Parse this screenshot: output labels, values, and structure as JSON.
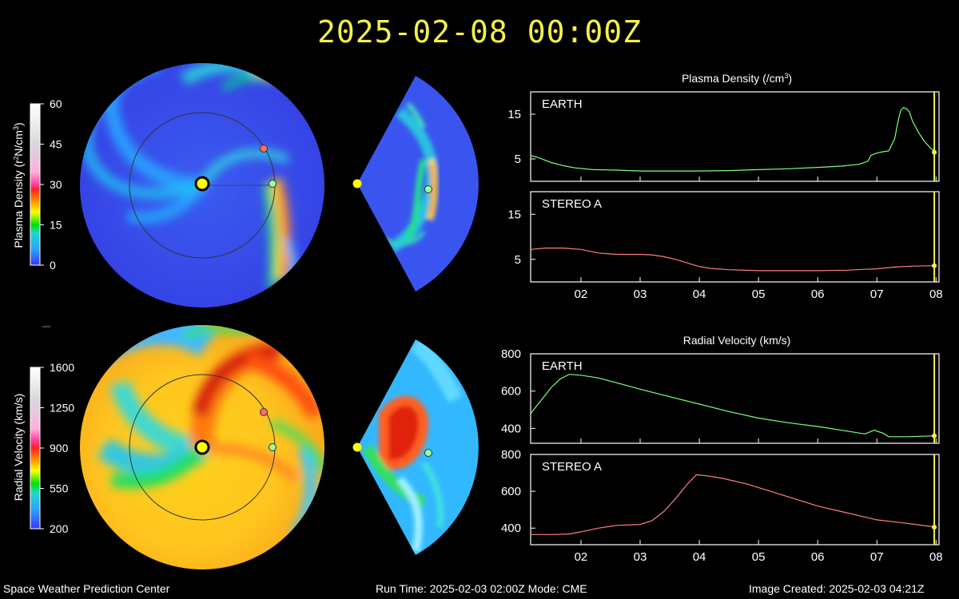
{
  "header": {
    "timestamp": "2025-02-08  00:00Z"
  },
  "footer": {
    "center": "Space Weather Prediction Center",
    "run_time": "Run Time: 2025-02-03 02:00Z  Mode: CME",
    "created": "Image Created: 2025-02-03 04:21Z"
  },
  "colorbars": {
    "density": {
      "label_pre": "Plasma Density (r",
      "label_sup1": "2",
      "label_mid": "N/cm",
      "label_sup2": "3",
      "label_post": ")",
      "ticks": [
        "60",
        "45",
        "30",
        "15",
        "0"
      ]
    },
    "velocity": {
      "label": "Radial Velocity (km/s)",
      "ticks": [
        "1600",
        "1250",
        "900",
        "550",
        "200"
      ]
    }
  },
  "colors": {
    "earth": "#7dff7d",
    "stereo_a": "#ff7f7f",
    "sun": "#ffff00",
    "marker": "#f5f04a",
    "title": "#f5f04a"
  },
  "chart_data": [
    {
      "type": "line",
      "panel_title_pre": "Plasma Density (/cm",
      "panel_title_sup": "3",
      "panel_title_post": ")",
      "ylabel": "",
      "xlim": [
        1.15,
        8.05
      ],
      "xticks": [
        "02",
        "03",
        "04",
        "05",
        "06",
        "07",
        "08"
      ],
      "subplots": [
        {
          "label": "EARTH",
          "ylim": [
            0,
            20
          ],
          "yticks": [
            5,
            15
          ],
          "color": "#7dff7d",
          "x": [
            1.15,
            1.3,
            1.5,
            1.7,
            1.9,
            2.2,
            2.6,
            3.0,
            3.5,
            4.0,
            4.5,
            5.0,
            5.5,
            6.0,
            6.4,
            6.7,
            6.85,
            6.9,
            7.0,
            7.1,
            7.2,
            7.3,
            7.35,
            7.4,
            7.45,
            7.5,
            7.55,
            7.6,
            7.7,
            7.8,
            7.9,
            8.0
          ],
          "y": [
            5.8,
            5.2,
            4.2,
            3.5,
            3.0,
            2.6,
            2.5,
            2.3,
            2.3,
            2.3,
            2.4,
            2.6,
            2.8,
            3.1,
            3.4,
            3.8,
            4.5,
            5.8,
            6.3,
            6.6,
            6.8,
            9.5,
            13.0,
            15.8,
            16.5,
            16.2,
            15.5,
            13.5,
            11.0,
            9.0,
            7.5,
            6.5
          ]
        },
        {
          "label": "STEREO A",
          "ylim": [
            0,
            20
          ],
          "yticks": [
            5,
            15
          ],
          "color": "#ff7f7f",
          "x": [
            1.15,
            1.4,
            1.7,
            2.0,
            2.3,
            2.6,
            3.0,
            3.2,
            3.4,
            3.6,
            3.8,
            4.0,
            4.2,
            4.5,
            5.0,
            5.5,
            6.0,
            6.5,
            6.8,
            7.0,
            7.3,
            7.6,
            8.0
          ],
          "y": [
            7.2,
            7.5,
            7.5,
            7.2,
            6.4,
            6.1,
            6.1,
            6.0,
            5.6,
            5.0,
            4.2,
            3.4,
            3.0,
            2.7,
            2.5,
            2.5,
            2.5,
            2.6,
            2.8,
            2.9,
            3.3,
            3.5,
            3.6
          ]
        }
      ]
    },
    {
      "type": "line",
      "panel_title": "Radial Velocity (km/s)",
      "ylabel": "",
      "xlim": [
        1.15,
        8.05
      ],
      "xticks": [
        "02",
        "03",
        "04",
        "05",
        "06",
        "07",
        "08"
      ],
      "subplots": [
        {
          "label": "EARTH",
          "ylim": [
            320,
            800
          ],
          "yticks": [
            400,
            600,
            800
          ],
          "color": "#7dff7d",
          "x": [
            1.15,
            1.3,
            1.5,
            1.65,
            1.8,
            2.0,
            2.3,
            2.6,
            3.0,
            3.5,
            4.0,
            4.5,
            5.0,
            5.5,
            6.0,
            6.5,
            6.8,
            6.95,
            7.1,
            7.2,
            7.5,
            8.0
          ],
          "y": [
            480,
            540,
            620,
            665,
            690,
            685,
            670,
            645,
            610,
            570,
            530,
            490,
            455,
            430,
            410,
            385,
            370,
            390,
            375,
            355,
            355,
            360
          ]
        },
        {
          "label": "STEREO A",
          "ylim": [
            310,
            800
          ],
          "yticks": [
            400,
            600,
            800
          ],
          "color": "#ff7f7f",
          "x": [
            1.15,
            1.5,
            1.8,
            2.0,
            2.3,
            2.6,
            3.0,
            3.2,
            3.4,
            3.6,
            3.8,
            3.95,
            4.1,
            4.4,
            4.8,
            5.2,
            5.6,
            6.0,
            6.4,
            6.8,
            7.0,
            7.4,
            8.0
          ],
          "y": [
            365,
            365,
            368,
            380,
            400,
            415,
            420,
            440,
            490,
            560,
            640,
            690,
            685,
            670,
            640,
            600,
            560,
            520,
            490,
            460,
            445,
            430,
            405
          ]
        }
      ]
    }
  ]
}
